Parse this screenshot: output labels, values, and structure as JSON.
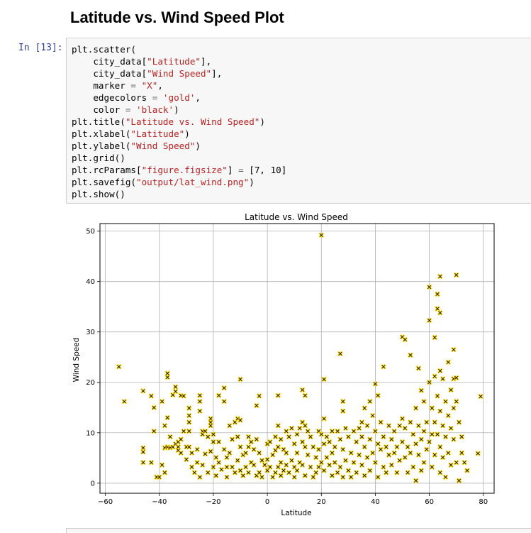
{
  "heading": "Latitude vs. Wind Speed Plot",
  "cell": {
    "prompt": "In [13]:",
    "code": [
      [
        {
          "t": "plt.scatter("
        }
      ],
      [
        {
          "t": "    city_data["
        },
        {
          "t": "\"Latitude\"",
          "c": "s"
        },
        {
          "t": "],"
        }
      ],
      [
        {
          "t": "    city_data["
        },
        {
          "t": "\"Wind Speed\"",
          "c": "s"
        },
        {
          "t": "],"
        }
      ],
      [
        {
          "t": "    marker "
        },
        {
          "t": "=",
          "c": "o"
        },
        {
          "t": " "
        },
        {
          "t": "\"X\"",
          "c": "s"
        },
        {
          "t": ","
        }
      ],
      [
        {
          "t": "    edgecolors "
        },
        {
          "t": "=",
          "c": "o"
        },
        {
          "t": " "
        },
        {
          "t": "'gold'",
          "c": "s"
        },
        {
          "t": ","
        }
      ],
      [
        {
          "t": "    color "
        },
        {
          "t": "=",
          "c": "o"
        },
        {
          "t": " "
        },
        {
          "t": "'black'",
          "c": "s"
        },
        {
          "t": ")"
        }
      ],
      [
        {
          "t": "plt.title("
        },
        {
          "t": "\"Latitude vs. Wind Speed\"",
          "c": "s"
        },
        {
          "t": ")"
        }
      ],
      [
        {
          "t": "plt.xlabel("
        },
        {
          "t": "\"Latitude\"",
          "c": "s"
        },
        {
          "t": ")"
        }
      ],
      [
        {
          "t": "plt.ylabel("
        },
        {
          "t": "\"Wind Speed\"",
          "c": "s"
        },
        {
          "t": ")"
        }
      ],
      [
        {
          "t": "plt.grid()"
        }
      ],
      [
        {
          "t": "plt.rcParams["
        },
        {
          "t": "\"figure.figsize\"",
          "c": "s"
        },
        {
          "t": "] "
        },
        {
          "t": "=",
          "c": "o"
        },
        {
          "t": " [7, 10]"
        }
      ],
      [
        {
          "t": "plt.savefig("
        },
        {
          "t": "\"output/lat_wind.png\"",
          "c": "s"
        },
        {
          "t": ")"
        }
      ],
      [
        {
          "t": "plt.show()"
        }
      ]
    ]
  },
  "chart_data": {
    "type": "scatter",
    "title": "Latitude vs. Wind Speed",
    "xlabel": "Latitude",
    "ylabel": "Wind Speed",
    "xlim": [
      -62,
      84
    ],
    "ylim": [
      -2,
      51.5
    ],
    "xticks": [
      -60,
      -40,
      -20,
      0,
      20,
      40,
      60,
      80
    ],
    "yticks": [
      0,
      10,
      20,
      30,
      40,
      50
    ],
    "grid": true,
    "marker": "X",
    "marker_face_color": "#000000",
    "marker_edge_color": "#FFD700",
    "points": [
      [
        -55,
        23.1
      ],
      [
        -53,
        16.2
      ],
      [
        -46,
        18.3
      ],
      [
        -46,
        7.0
      ],
      [
        -46,
        6.2
      ],
      [
        -46,
        4.1
      ],
      [
        -43,
        17.3
      ],
      [
        -43,
        4.1
      ],
      [
        -42,
        15.0
      ],
      [
        -42,
        10.3
      ],
      [
        -41,
        1.2
      ],
      [
        -40,
        1.2
      ],
      [
        -39,
        16.2
      ],
      [
        -39,
        3.6
      ],
      [
        -38,
        11.4
      ],
      [
        -38,
        7.0
      ],
      [
        -38,
        2.1
      ],
      [
        -37,
        21.8
      ],
      [
        -37,
        21.0
      ],
      [
        -37,
        13.0
      ],
      [
        -37,
        7.2
      ],
      [
        -36,
        7.0
      ],
      [
        -36,
        9.2
      ],
      [
        -35,
        17.5
      ],
      [
        -35,
        7.2
      ],
      [
        -34,
        19.1
      ],
      [
        -34,
        18.2
      ],
      [
        -34,
        7.8
      ],
      [
        -33,
        7.2
      ],
      [
        -33,
        8.2
      ],
      [
        -33,
        6.5
      ],
      [
        -32,
        17.4
      ],
      [
        -32,
        8.7
      ],
      [
        -32,
        6.0
      ],
      [
        -31,
        17.3
      ],
      [
        -31,
        10.3
      ],
      [
        -30,
        7.2
      ],
      [
        -30,
        4.7
      ],
      [
        -29,
        14.9
      ],
      [
        -29,
        13.4
      ],
      [
        -29,
        12.1
      ],
      [
        -29,
        10.3
      ],
      [
        -29,
        7.2
      ],
      [
        -28,
        6.0
      ],
      [
        -28,
        3.2
      ],
      [
        -27,
        2.1
      ],
      [
        -26,
        6.7
      ],
      [
        -26,
        4.1
      ],
      [
        -25,
        17.4
      ],
      [
        -25,
        16.2
      ],
      [
        -25,
        14.3
      ],
      [
        -25,
        1.2
      ],
      [
        -24,
        10.3
      ],
      [
        -24,
        9.7
      ],
      [
        -24,
        3.6
      ],
      [
        -23,
        10.3
      ],
      [
        -23,
        5.8
      ],
      [
        -22,
        9.2
      ],
      [
        -22,
        2.1
      ],
      [
        -21,
        12.8
      ],
      [
        -21,
        12.1
      ],
      [
        -21,
        11.4
      ],
      [
        -21,
        6.3
      ],
      [
        -20,
        9.7
      ],
      [
        -20,
        8.2
      ],
      [
        -20,
        3.2
      ],
      [
        -19,
        5.1
      ],
      [
        -19,
        1.5
      ],
      [
        -18,
        17.4
      ],
      [
        -18,
        8.2
      ],
      [
        -18,
        4.1
      ],
      [
        -17,
        2.7
      ],
      [
        -16,
        18.9
      ],
      [
        -16,
        16.2
      ],
      [
        -16,
        6.7
      ],
      [
        -15,
        5.1
      ],
      [
        -15,
        3.2
      ],
      [
        -15,
        1.2
      ],
      [
        -14,
        11.4
      ],
      [
        -14,
        6.0
      ],
      [
        -13,
        8.7
      ],
      [
        -13,
        3.2
      ],
      [
        -12,
        2.1
      ],
      [
        -12,
        12.1
      ],
      [
        -11,
        12.8
      ],
      [
        -11,
        9.2
      ],
      [
        -11,
        4.5
      ],
      [
        -10,
        20.6
      ],
      [
        -10,
        12.5
      ],
      [
        -10,
        7.2
      ],
      [
        -10,
        2.5
      ],
      [
        -9,
        5.6
      ],
      [
        -9,
        1.5
      ],
      [
        -8,
        6.0
      ],
      [
        -8,
        3.2
      ],
      [
        -7,
        9.2
      ],
      [
        -7,
        7.2
      ],
      [
        -7,
        2.1
      ],
      [
        -6,
        8.2
      ],
      [
        -6,
        4.1
      ],
      [
        -5,
        6.7
      ],
      [
        -5,
        3.6
      ],
      [
        -4,
        15.4
      ],
      [
        -4,
        8.7
      ],
      [
        -4,
        1.5
      ],
      [
        -3,
        17.3
      ],
      [
        -3,
        6.0
      ],
      [
        -3,
        2.1
      ],
      [
        -2,
        4.5
      ],
      [
        -2,
        1.2
      ],
      [
        -1,
        3.6
      ],
      [
        0,
        7.8
      ],
      [
        0,
        4.7
      ],
      [
        0,
        2.5
      ],
      [
        1,
        8.2
      ],
      [
        1,
        3.2
      ],
      [
        2,
        5.6
      ],
      [
        2,
        1.2
      ],
      [
        3,
        9.2
      ],
      [
        3,
        6.5
      ],
      [
        3,
        2.1
      ],
      [
        4,
        17.4
      ],
      [
        4,
        11.4
      ],
      [
        4,
        7.2
      ],
      [
        4,
        3.2
      ],
      [
        5,
        8.7
      ],
      [
        5,
        4.1
      ],
      [
        5,
        1.5
      ],
      [
        6,
        6.7
      ],
      [
        6,
        2.5
      ],
      [
        7,
        10.3
      ],
      [
        7,
        6.0
      ],
      [
        7,
        3.6
      ],
      [
        8,
        9.2
      ],
      [
        8,
        2.1
      ],
      [
        9,
        10.9
      ],
      [
        9,
        4.5
      ],
      [
        10,
        7.8
      ],
      [
        10,
        3.2
      ],
      [
        10,
        1.2
      ],
      [
        11,
        9.7
      ],
      [
        11,
        6.0
      ],
      [
        11,
        2.5
      ],
      [
        12,
        10.9
      ],
      [
        12,
        4.1
      ],
      [
        13,
        18.5
      ],
      [
        13,
        12.1
      ],
      [
        13,
        8.2
      ],
      [
        13,
        3.6
      ],
      [
        14,
        17.4
      ],
      [
        14,
        11.4
      ],
      [
        14,
        7.2
      ],
      [
        14,
        1.5
      ],
      [
        15,
        10.3
      ],
      [
        15,
        5.6
      ],
      [
        16,
        9.2
      ],
      [
        16,
        3.2
      ],
      [
        17,
        7.2
      ],
      [
        17,
        1.2
      ],
      [
        18,
        5.1
      ],
      [
        18,
        2.1
      ],
      [
        19,
        10.3
      ],
      [
        19,
        6.7
      ],
      [
        19,
        3.2
      ],
      [
        20,
        49.2
      ],
      [
        20,
        9.7
      ],
      [
        20,
        4.1
      ],
      [
        21,
        20.6
      ],
      [
        21,
        12.8
      ],
      [
        21,
        7.8
      ],
      [
        21,
        2.5
      ],
      [
        22,
        9.2
      ],
      [
        22,
        5.1
      ],
      [
        23,
        8.2
      ],
      [
        23,
        3.6
      ],
      [
        24,
        10.3
      ],
      [
        24,
        6.0
      ],
      [
        24,
        1.5
      ],
      [
        25,
        7.2
      ],
      [
        25,
        4.1
      ],
      [
        26,
        10.3
      ],
      [
        26,
        2.1
      ],
      [
        27,
        25.7
      ],
      [
        27,
        8.7
      ],
      [
        27,
        3.2
      ],
      [
        28,
        16.2
      ],
      [
        28,
        14.3
      ],
      [
        28,
        6.7
      ],
      [
        28,
        1.2
      ],
      [
        29,
        10.9
      ],
      [
        29,
        4.5
      ],
      [
        30,
        9.2
      ],
      [
        30,
        2.5
      ],
      [
        31,
        6.0
      ],
      [
        31,
        1.2
      ],
      [
        32,
        10.3
      ],
      [
        32,
        4.1
      ],
      [
        33,
        8.2
      ],
      [
        33,
        2.1
      ],
      [
        34,
        10.9
      ],
      [
        34,
        5.6
      ],
      [
        35,
        12.1
      ],
      [
        35,
        9.2
      ],
      [
        35,
        3.6
      ],
      [
        36,
        14.9
      ],
      [
        36,
        7.2
      ],
      [
        36,
        1.5
      ],
      [
        37,
        11.4
      ],
      [
        37,
        5.1
      ],
      [
        38,
        16.2
      ],
      [
        38,
        8.7
      ],
      [
        38,
        2.5
      ],
      [
        39,
        13.4
      ],
      [
        39,
        6.0
      ],
      [
        40,
        19.7
      ],
      [
        40,
        10.3
      ],
      [
        40,
        4.1
      ],
      [
        41,
        17.4
      ],
      [
        41,
        7.8
      ],
      [
        41,
        1.2
      ],
      [
        42,
        12.1
      ],
      [
        42,
        6.7
      ],
      [
        43,
        23.1
      ],
      [
        43,
        9.2
      ],
      [
        43,
        3.2
      ],
      [
        44,
        7.2
      ],
      [
        44,
        2.1
      ],
      [
        45,
        11.4
      ],
      [
        45,
        5.6
      ],
      [
        46,
        8.7
      ],
      [
        46,
        3.6
      ],
      [
        47,
        10.3
      ],
      [
        47,
        6.0
      ],
      [
        48,
        7.2
      ],
      [
        48,
        2.1
      ],
      [
        49,
        11.4
      ],
      [
        49,
        4.5
      ],
      [
        50,
        29.0
      ],
      [
        50,
        12.8
      ],
      [
        50,
        8.2
      ],
      [
        51,
        28.5
      ],
      [
        51,
        10.9
      ],
      [
        51,
        5.1
      ],
      [
        52,
        7.2
      ],
      [
        52,
        2.1
      ],
      [
        53,
        25.4
      ],
      [
        53,
        12.1
      ],
      [
        53,
        6.0
      ],
      [
        54,
        9.7
      ],
      [
        54,
        3.2
      ],
      [
        55,
        14.9
      ],
      [
        55,
        7.8
      ],
      [
        55,
        0.5
      ],
      [
        56,
        22.8
      ],
      [
        56,
        11.4
      ],
      [
        56,
        5.6
      ],
      [
        57,
        18.4
      ],
      [
        57,
        8.7
      ],
      [
        57,
        2.5
      ],
      [
        58,
        16.2
      ],
      [
        58,
        10.3
      ],
      [
        58,
        4.1
      ],
      [
        59,
        12.1
      ],
      [
        59,
        6.7
      ],
      [
        60,
        38.9
      ],
      [
        60,
        32.3
      ],
      [
        60,
        20.0
      ],
      [
        60,
        8.2
      ],
      [
        61,
        14.9
      ],
      [
        61,
        9.7
      ],
      [
        61,
        3.2
      ],
      [
        62,
        28.9
      ],
      [
        62,
        21.2
      ],
      [
        62,
        12.1
      ],
      [
        62,
        5.6
      ],
      [
        63,
        37.5
      ],
      [
        63,
        34.6
      ],
      [
        63,
        17.3
      ],
      [
        63,
        9.7
      ],
      [
        64,
        41.0
      ],
      [
        64,
        33.8
      ],
      [
        64,
        22.3
      ],
      [
        64,
        14.3
      ],
      [
        64,
        7.2
      ],
      [
        64,
        2.1
      ],
      [
        65,
        20.7
      ],
      [
        65,
        11.4
      ],
      [
        65,
        5.1
      ],
      [
        66,
        16.2
      ],
      [
        66,
        9.2
      ],
      [
        66,
        1.2
      ],
      [
        67,
        24.0
      ],
      [
        67,
        13.4
      ],
      [
        67,
        6.0
      ],
      [
        68,
        18.5
      ],
      [
        68,
        10.9
      ],
      [
        68,
        3.6
      ],
      [
        69,
        26.5
      ],
      [
        69,
        20.7
      ],
      [
        69,
        14.9
      ],
      [
        69,
        8.7
      ],
      [
        70,
        41.3
      ],
      [
        70,
        20.9
      ],
      [
        70,
        16.2
      ],
      [
        70,
        4.1
      ],
      [
        71,
        12.1
      ],
      [
        71,
        0.5
      ],
      [
        72,
        9.2
      ],
      [
        72,
        6.0
      ],
      [
        73,
        4.1
      ],
      [
        74,
        2.5
      ],
      [
        78,
        5.9
      ],
      [
        79,
        17.2
      ]
    ]
  }
}
